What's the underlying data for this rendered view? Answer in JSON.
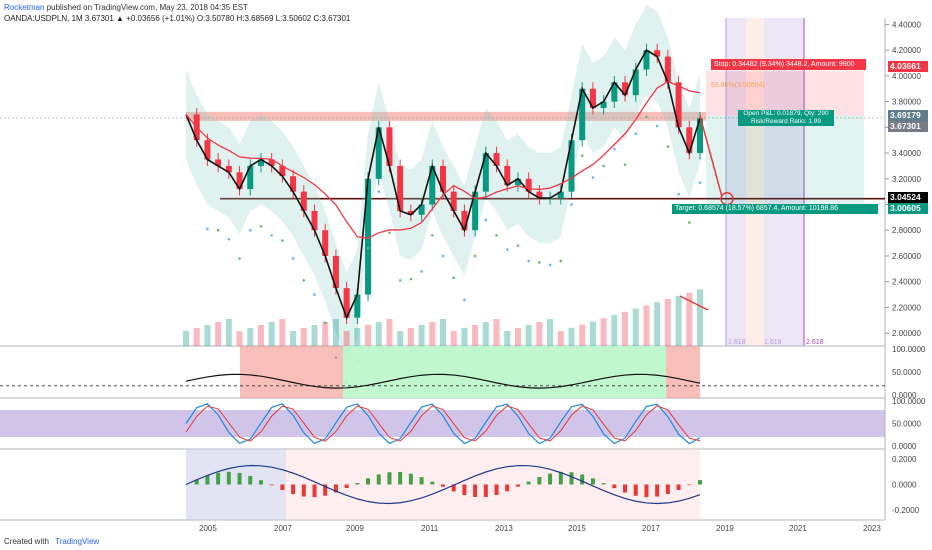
{
  "header": {
    "author": "Rocketman",
    "published": "published on TradingView.com, May 23, 2018 04:35 EST",
    "symbol_line": "OANDA:USDPLN, 1M 3.67301 ▲ +0.03656 (+1.01%) O:3.50780 H:3.68569 L:3.50602 C:3.67301"
  },
  "footer": {
    "created_with": "Created with",
    "brand": "TradingView"
  },
  "price_tags": {
    "stop": "4.03661",
    "entry": "3.69179",
    "current": "3.67301",
    "target_line": "3.04524",
    "target": "3.00605"
  },
  "annotations": {
    "stop": "Stop: 0.34482 (9.34%) 3448.2, Amount: 9900",
    "open_pl": "Open P&L: 0.01879, Qty: 290",
    "rr": "Risk/Reward Ratio: 1.99",
    "target": "Target: 0.68574 (18.57%) 6857.4, Amount: 10198.86",
    "fib": "61.80%(3.90654)",
    "cycle_labels": [
      "1.618",
      "1.618",
      "2.618"
    ]
  },
  "chart_data": [
    {
      "type": "line",
      "title": "",
      "series": [
        {
          "name": "USDPLN",
          "values": [
            3.7,
            3.5,
            3.35,
            3.3,
            3.25,
            3.12,
            3.3,
            3.35,
            3.3,
            3.22,
            3.1,
            2.95,
            2.8,
            2.6,
            2.35,
            2.12,
            2.3,
            3.2,
            3.6,
            3.3,
            2.95,
            2.92,
            3.0,
            3.3,
            3.1,
            2.95,
            2.8,
            3.1,
            3.4,
            3.3,
            3.15,
            3.2,
            3.1,
            3.05,
            3.05,
            3.1,
            3.5,
            3.9,
            3.75,
            3.8,
            3.95,
            3.85,
            4.05,
            4.2,
            4.15,
            3.95,
            3.6,
            3.4,
            3.67
          ]
        }
      ],
      "x_ticks": [
        "2005",
        "2007",
        "2009",
        "2011",
        "2013",
        "2015",
        "2017",
        "2019",
        "2021",
        "2023"
      ],
      "y_ticks": [
        "4.40000",
        "4.20000",
        "4.00000",
        "3.80000",
        "3.60000",
        "3.40000",
        "3.20000",
        "3.00000",
        "2.80000",
        "2.60000",
        "2.40000",
        "2.20000",
        "2.00000"
      ],
      "ylim": [
        1.9,
        4.45
      ]
    },
    {
      "type": "line",
      "title": "",
      "y_ticks": [
        "100.0000",
        "50.0000",
        "0.0000"
      ],
      "ylim": [
        0,
        100
      ]
    },
    {
      "type": "line",
      "title": "",
      "y_ticks": [
        "100.0000",
        "50.0000",
        "0.0000"
      ],
      "ylim": [
        0,
        100
      ]
    },
    {
      "type": "bar",
      "title": "",
      "y_ticks": [
        "0.2000",
        "0.0000",
        "-0.2000"
      ],
      "ylim": [
        -0.28,
        0.28
      ]
    }
  ],
  "colors": {
    "up": "#089981",
    "down": "#f23645",
    "sma": "#f23645",
    "orange": "#f7a35c",
    "accent": "#2962ff"
  }
}
